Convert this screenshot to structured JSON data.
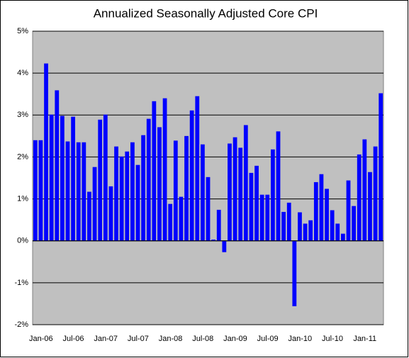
{
  "chart_data": {
    "type": "bar",
    "title": "Annualized Seasonally Adjusted Core CPI",
    "categories": [
      "Jan-06",
      null,
      null,
      null,
      null,
      null,
      "Jul-06",
      null,
      null,
      null,
      null,
      null,
      "Jan-07",
      null,
      null,
      null,
      null,
      null,
      "Jul-07",
      null,
      null,
      null,
      null,
      null,
      "Jan-08",
      null,
      null,
      null,
      null,
      null,
      "Jul-08",
      null,
      null,
      null,
      null,
      null,
      "Jan-09",
      null,
      null,
      null,
      null,
      null,
      "Jul-09",
      null,
      null,
      null,
      null,
      null,
      "Jan-10",
      null,
      null,
      null,
      null,
      null,
      "Jul-10",
      null,
      null,
      null,
      null,
      null,
      "Jan-11",
      null,
      null,
      null,
      null
    ],
    "values": [
      2.4,
      2.4,
      4.23,
      3.01,
      3.59,
      2.98,
      2.37,
      2.96,
      2.35,
      2.35,
      1.17,
      1.76,
      2.89,
      3.01,
      1.3,
      2.25,
      2.01,
      2.13,
      2.35,
      1.81,
      2.52,
      2.91,
      3.33,
      2.71,
      3.4,
      0.88,
      2.39,
      1.05,
      2.5,
      3.11,
      3.45,
      2.3,
      1.52,
      0.03,
      0.74,
      -0.27,
      2.32,
      2.47,
      2.22,
      2.76,
      1.62,
      1.79,
      1.1,
      1.1,
      2.18,
      2.61,
      0.69,
      0.91,
      -1.56,
      0.68,
      0.41,
      0.49,
      1.4,
      1.59,
      1.24,
      0.73,
      0.41,
      0.17,
      1.44,
      0.83,
      2.06,
      2.42,
      1.64,
      2.25,
      3.52
    ],
    "color": "#0000ff",
    "background": "#c0c0c0",
    "ylim": [
      -2,
      5
    ],
    "yticks": [
      {
        "value": -2,
        "label": "-2%"
      },
      {
        "value": -1,
        "label": "-1%"
      },
      {
        "value": 0,
        "label": "0%"
      },
      {
        "value": 1,
        "label": "1%"
      },
      {
        "value": 2,
        "label": "2%"
      },
      {
        "value": 3,
        "label": "3%"
      },
      {
        "value": 4,
        "label": "4%"
      },
      {
        "value": 5,
        "label": "5%"
      }
    ],
    "grid": true
  }
}
